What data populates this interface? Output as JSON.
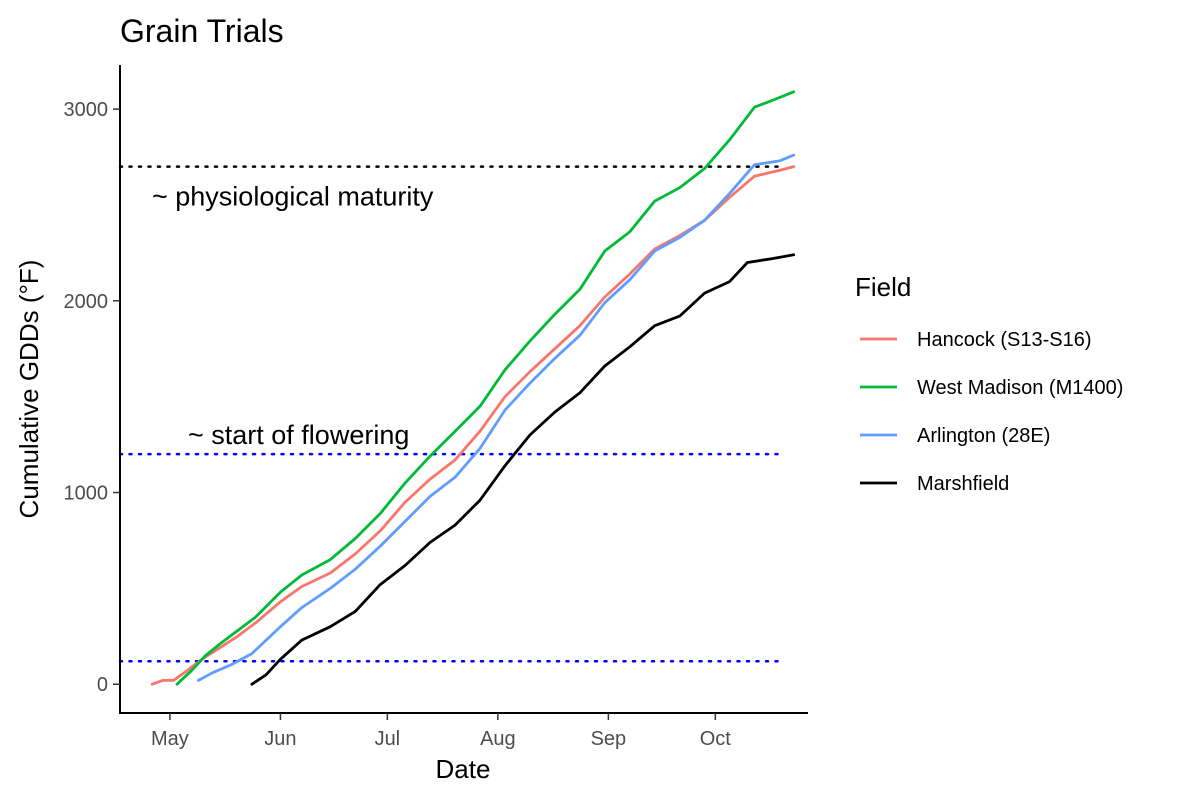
{
  "chart_data": {
    "type": "line",
    "title": "Grain Trials",
    "xlabel": "Date",
    "ylabel": "Cumulative GDDs (°F)",
    "x_ticks": [
      "May",
      "Jun",
      "Jul",
      "Aug",
      "Sep",
      "Oct"
    ],
    "y_ticks": [
      0,
      1000,
      2000,
      3000
    ],
    "ylim": [
      -150,
      3230
    ],
    "xlim": [
      "2023-04-17",
      "2023-10-27"
    ],
    "grid": false,
    "legend": {
      "title": "Field",
      "position": "right"
    },
    "hlines": [
      {
        "y": 2700,
        "color": "#000000",
        "style": "dotted",
        "label": "~ physiological maturity"
      },
      {
        "y": 1200,
        "color": "#0000ff",
        "style": "dotted",
        "label": "~ start of flowering"
      },
      {
        "y": 120,
        "color": "#0000ff",
        "style": "dotted",
        "label": ""
      }
    ],
    "series": [
      {
        "name": "Hancock (S13-S16)",
        "color": "#F8766D",
        "points": [
          [
            "2023-04-26",
            0
          ],
          [
            "2023-04-29",
            20
          ],
          [
            "2023-05-02",
            20
          ],
          [
            "2023-05-05",
            60
          ],
          [
            "2023-05-10",
            130
          ],
          [
            "2023-05-15",
            190
          ],
          [
            "2023-05-20",
            250
          ],
          [
            "2023-05-25",
            320
          ],
          [
            "2023-06-01",
            430
          ],
          [
            "2023-06-07",
            510
          ],
          [
            "2023-06-15",
            580
          ],
          [
            "2023-06-22",
            680
          ],
          [
            "2023-06-29",
            800
          ],
          [
            "2023-07-06",
            950
          ],
          [
            "2023-07-13",
            1070
          ],
          [
            "2023-07-20",
            1170
          ],
          [
            "2023-07-27",
            1320
          ],
          [
            "2023-08-03",
            1500
          ],
          [
            "2023-08-10",
            1630
          ],
          [
            "2023-08-17",
            1750
          ],
          [
            "2023-08-24",
            1870
          ],
          [
            "2023-08-31",
            2020
          ],
          [
            "2023-09-07",
            2140
          ],
          [
            "2023-09-14",
            2270
          ],
          [
            "2023-09-21",
            2340
          ],
          [
            "2023-09-28",
            2420
          ],
          [
            "2023-10-05",
            2540
          ],
          [
            "2023-10-12",
            2650
          ],
          [
            "2023-10-19",
            2680
          ],
          [
            "2023-10-23",
            2700
          ]
        ]
      },
      {
        "name": "West Madison (M1400)",
        "color": "#00BA38",
        "points": [
          [
            "2023-05-03",
            0
          ],
          [
            "2023-05-07",
            70
          ],
          [
            "2023-05-11",
            150
          ],
          [
            "2023-05-15",
            210
          ],
          [
            "2023-05-20",
            280
          ],
          [
            "2023-05-25",
            350
          ],
          [
            "2023-06-01",
            480
          ],
          [
            "2023-06-07",
            570
          ],
          [
            "2023-06-15",
            650
          ],
          [
            "2023-06-22",
            760
          ],
          [
            "2023-06-29",
            890
          ],
          [
            "2023-07-06",
            1050
          ],
          [
            "2023-07-13",
            1190
          ],
          [
            "2023-07-20",
            1320
          ],
          [
            "2023-07-27",
            1450
          ],
          [
            "2023-08-03",
            1640
          ],
          [
            "2023-08-10",
            1790
          ],
          [
            "2023-08-17",
            1930
          ],
          [
            "2023-08-24",
            2060
          ],
          [
            "2023-08-31",
            2260
          ],
          [
            "2023-09-07",
            2360
          ],
          [
            "2023-09-14",
            2520
          ],
          [
            "2023-09-21",
            2590
          ],
          [
            "2023-09-28",
            2690
          ],
          [
            "2023-10-05",
            2840
          ],
          [
            "2023-10-12",
            3010
          ],
          [
            "2023-10-19",
            3060
          ],
          [
            "2023-10-23",
            3090
          ]
        ]
      },
      {
        "name": "Arlington (28E)",
        "color": "#619CFF",
        "points": [
          [
            "2023-05-09",
            20
          ],
          [
            "2023-05-13",
            60
          ],
          [
            "2023-05-18",
            100
          ],
          [
            "2023-05-24",
            160
          ],
          [
            "2023-06-01",
            300
          ],
          [
            "2023-06-07",
            400
          ],
          [
            "2023-06-15",
            500
          ],
          [
            "2023-06-22",
            600
          ],
          [
            "2023-06-29",
            720
          ],
          [
            "2023-07-06",
            850
          ],
          [
            "2023-07-13",
            980
          ],
          [
            "2023-07-20",
            1080
          ],
          [
            "2023-07-27",
            1230
          ],
          [
            "2023-08-03",
            1430
          ],
          [
            "2023-08-10",
            1570
          ],
          [
            "2023-08-17",
            1700
          ],
          [
            "2023-08-24",
            1820
          ],
          [
            "2023-08-31",
            1990
          ],
          [
            "2023-09-07",
            2110
          ],
          [
            "2023-09-14",
            2260
          ],
          [
            "2023-09-21",
            2330
          ],
          [
            "2023-09-28",
            2420
          ],
          [
            "2023-10-05",
            2560
          ],
          [
            "2023-10-12",
            2710
          ],
          [
            "2023-10-19",
            2730
          ],
          [
            "2023-10-23",
            2760
          ]
        ]
      },
      {
        "name": "Marshfield",
        "color": "#000000",
        "points": [
          [
            "2023-05-24",
            0
          ],
          [
            "2023-05-28",
            50
          ],
          [
            "2023-06-01",
            130
          ],
          [
            "2023-06-07",
            230
          ],
          [
            "2023-06-15",
            300
          ],
          [
            "2023-06-22",
            380
          ],
          [
            "2023-06-29",
            520
          ],
          [
            "2023-07-06",
            620
          ],
          [
            "2023-07-13",
            740
          ],
          [
            "2023-07-20",
            830
          ],
          [
            "2023-07-27",
            960
          ],
          [
            "2023-08-03",
            1140
          ],
          [
            "2023-08-10",
            1300
          ],
          [
            "2023-08-17",
            1420
          ],
          [
            "2023-08-24",
            1520
          ],
          [
            "2023-08-31",
            1660
          ],
          [
            "2023-09-07",
            1760
          ],
          [
            "2023-09-14",
            1870
          ],
          [
            "2023-09-21",
            1920
          ],
          [
            "2023-09-28",
            2040
          ],
          [
            "2023-10-05",
            2100
          ],
          [
            "2023-10-10",
            2200
          ],
          [
            "2023-10-17",
            2220
          ],
          [
            "2023-10-23",
            2240
          ]
        ]
      }
    ]
  }
}
